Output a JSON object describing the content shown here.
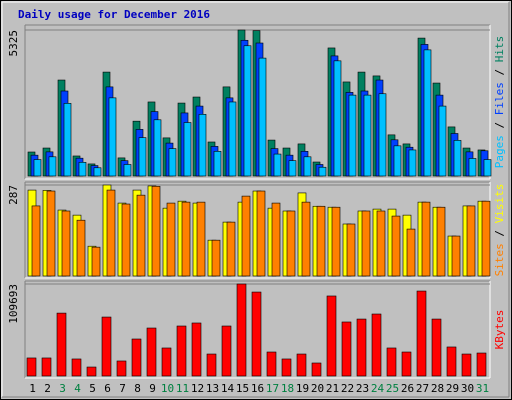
{
  "title": "Daily usage for December 2016",
  "title_color": "#0000c0",
  "categories": [
    "1",
    "2",
    "3",
    "4",
    "5",
    "6",
    "7",
    "8",
    "9",
    "10",
    "11",
    "12",
    "13",
    "14",
    "15",
    "16",
    "17",
    "18",
    "19",
    "20",
    "21",
    "22",
    "23",
    "24",
    "25",
    "26",
    "27",
    "28",
    "29",
    "30",
    "31"
  ],
  "category_colors": [
    "#000000",
    "#000000",
    "#008040",
    "#008040",
    "#000000",
    "#000000",
    "#000000",
    "#000000",
    "#000000",
    "#008040",
    "#008040",
    "#000000",
    "#000000",
    "#000000",
    "#000000",
    "#000000",
    "#008040",
    "#008040",
    "#000000",
    "#000000",
    "#000000",
    "#000000",
    "#000000",
    "#008040",
    "#008040",
    "#000000",
    "#000000",
    "#000000",
    "#000000",
    "#000000",
    "#008040"
  ],
  "legend_separator": " / ",
  "chart_data": [
    {
      "type": "bar",
      "ylim": [
        0,
        5325
      ],
      "yticks": [
        5325
      ],
      "series": [
        {
          "name": "Hits",
          "color": "#008060",
          "values": [
            875,
            1020,
            3500,
            730,
            440,
            3790,
            660,
            2000,
            2700,
            1390,
            2660,
            2880,
            1240,
            3250,
            5325,
            5300,
            1310,
            1020,
            1170,
            510,
            4670,
            3430,
            3790,
            3650,
            1500,
            1170,
            5030,
            3390,
            1790,
            1020,
            950
          ]
        },
        {
          "name": "Files",
          "color": "#0040ff",
          "values": [
            760,
            880,
            3100,
            650,
            380,
            3250,
            560,
            1700,
            2350,
            1200,
            2300,
            2550,
            1080,
            2850,
            4950,
            4850,
            1000,
            760,
            900,
            420,
            4380,
            3050,
            3100,
            3500,
            1320,
            1050,
            4800,
            2950,
            1550,
            880,
            920
          ]
        },
        {
          "name": "Pages",
          "color": "#00c0ff",
          "values": [
            600,
            700,
            2650,
            500,
            300,
            2850,
            420,
            1400,
            2050,
            1000,
            1950,
            2250,
            900,
            2700,
            4750,
            4300,
            800,
            560,
            700,
            320,
            4200,
            2950,
            2950,
            3000,
            1100,
            950,
            4600,
            2550,
            1300,
            640,
            600
          ]
        }
      ]
    },
    {
      "type": "bar",
      "ylim": [
        0,
        287
      ],
      "yticks": [
        287
      ],
      "series": [
        {
          "name": "Visits",
          "color": "#ffff00",
          "values": [
            271,
            270,
            208,
            192,
            94,
            287,
            230,
            271,
            284,
            214,
            236,
            230,
            113,
            170,
            233,
            268,
            214,
            205,
            262,
            220,
            217,
            164,
            205,
            211,
            211,
            192,
            233,
            217,
            126,
            221,
            236
          ]
        },
        {
          "name": "Sites",
          "color": "#ff8000",
          "values": [
            221,
            268,
            205,
            176,
            91,
            271,
            227,
            255,
            283,
            230,
            233,
            233,
            113,
            170,
            252,
            268,
            230,
            205,
            233,
            220,
            217,
            164,
            205,
            205,
            189,
            148,
            233,
            217,
            126,
            221,
            236
          ]
        }
      ]
    },
    {
      "type": "bar",
      "ylim": [
        0,
        109693
      ],
      "yticks": [
        109693
      ],
      "series": [
        {
          "name": "KBytes",
          "color": "#ff0000",
          "values": [
            21500,
            21500,
            75000,
            20300,
            10700,
            70300,
            17900,
            44100,
            57200,
            33400,
            59600,
            63200,
            26200,
            59600,
            109693,
            100100,
            28600,
            20300,
            26200,
            15500,
            95400,
            64400,
            67900,
            73900,
            33400,
            28600,
            101300,
            67900,
            34600,
            26200,
            27400
          ]
        }
      ]
    }
  ]
}
